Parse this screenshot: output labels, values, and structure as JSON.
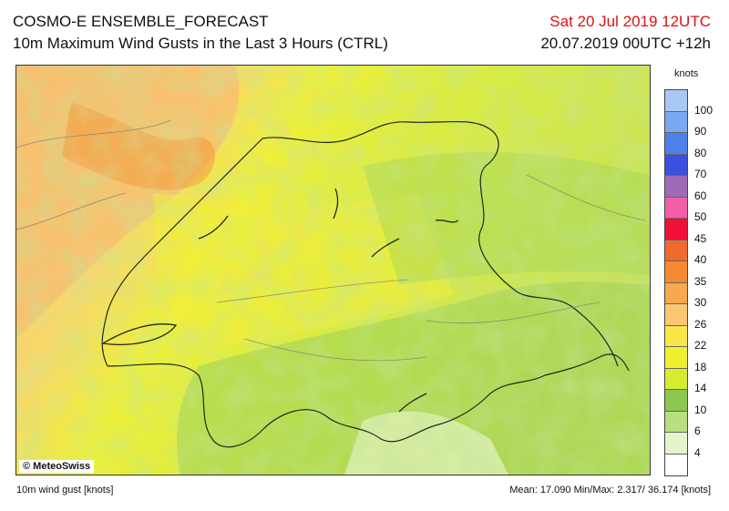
{
  "header": {
    "title": "COSMO-E ENSEMBLE_FORECAST",
    "subtitle": "10m Maximum Wind Gusts in the Last 3 Hours (CTRL)",
    "valid_time": "Sat 20 Jul 2019 12UTC",
    "run_info": "20.07.2019 00UTC +12h"
  },
  "map": {
    "copyright": "© MeteoSwiss"
  },
  "legend": {
    "unit": "knots",
    "ticks": [
      "100",
      "90",
      "80",
      "70",
      "60",
      "50",
      "45",
      "40",
      "35",
      "30",
      "26",
      "22",
      "18",
      "14",
      "10",
      "6",
      "4"
    ],
    "colors": [
      "#a9c8f5",
      "#78a9f2",
      "#4f7fe8",
      "#3b4fe0",
      "#a06ab8",
      "#f25fa8",
      "#f0103c",
      "#f06a2e",
      "#f58a30",
      "#f8a850",
      "#fbc872",
      "#fbe648",
      "#f0f030",
      "#d6ec2e",
      "#8cc850",
      "#b8e080",
      "#e4f4cc",
      "#ffffff"
    ]
  },
  "footer": {
    "left": "10m wind gust [knots]",
    "right": "Mean: 17.090 Min/Max:  2.317/ 36.174 [knots]"
  }
}
